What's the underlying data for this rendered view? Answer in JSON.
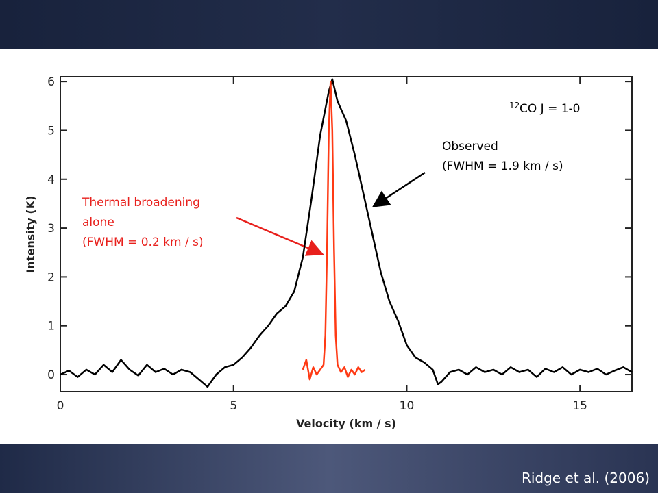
{
  "chart_data": {
    "type": "line",
    "title_sup": "12",
    "title": "CO J = 1-0",
    "xlabel": "Velocity (km / s)",
    "ylabel": "Intensity (K)",
    "annotations": [
      "Observed",
      "(FWHM = 1.9 km / s)",
      "Thermal broadening",
      "alone",
      "(FWHM = 0.2 km / s)"
    ],
    "xlim": [
      0,
      16.5
    ],
    "ylim": [
      -0.35,
      6.1
    ],
    "xticks": [
      0,
      5,
      10,
      15
    ],
    "yticks": [
      0,
      1,
      2,
      3,
      4,
      5,
      6
    ],
    "series": [
      {
        "name": "Observed",
        "color": "#000000",
        "x": [
          0,
          0.25,
          0.5,
          0.75,
          1,
          1.25,
          1.5,
          1.75,
          2,
          2.25,
          2.5,
          2.75,
          3,
          3.25,
          3.5,
          3.75,
          4,
          4.25,
          4.5,
          4.75,
          5,
          5.25,
          5.5,
          5.75,
          6,
          6.25,
          6.5,
          6.75,
          7,
          7.25,
          7.5,
          7.75,
          7.85,
          8,
          8.25,
          8.5,
          8.75,
          9,
          9.25,
          9.5,
          9.75,
          10,
          10.25,
          10.5,
          10.75,
          10.9,
          11,
          11.25,
          11.5,
          11.75,
          12,
          12.25,
          12.5,
          12.75,
          13,
          13.25,
          13.5,
          13.75,
          14,
          14.25,
          14.5,
          14.75,
          15,
          15.25,
          15.5,
          15.75,
          16,
          16.25,
          16.5
        ],
        "values": [
          0,
          0.08,
          -0.05,
          0.1,
          0,
          0.2,
          0.05,
          0.3,
          0.1,
          -0.02,
          0.2,
          0.05,
          0.12,
          0,
          0.1,
          0.05,
          -0.1,
          -0.25,
          0.0,
          0.15,
          0.2,
          0.35,
          0.55,
          0.8,
          1.0,
          1.25,
          1.4,
          1.7,
          2.4,
          3.6,
          4.9,
          5.8,
          6.05,
          5.6,
          5.2,
          4.5,
          3.7,
          2.9,
          2.1,
          1.5,
          1.1,
          0.6,
          0.35,
          0.25,
          0.1,
          -0.2,
          -0.15,
          0.05,
          0.1,
          0.0,
          0.15,
          0.05,
          0.1,
          0.0,
          0.15,
          0.05,
          0.1,
          -0.05,
          0.12,
          0.05,
          0.15,
          0.0,
          0.1,
          0.05,
          0.12,
          0.0,
          0.08,
          0.15,
          0.05
        ]
      },
      {
        "name": "Thermal broadening",
        "color": "#ff3a14",
        "x": [
          7.0,
          7.1,
          7.2,
          7.3,
          7.4,
          7.5,
          7.6,
          7.65,
          7.7,
          7.75,
          7.8,
          7.85,
          7.9,
          7.95,
          8.0,
          8.1,
          8.2,
          8.3,
          8.4,
          8.5,
          8.6,
          8.7,
          8.8
        ],
        "values": [
          0.1,
          0.3,
          -0.1,
          0.15,
          0.0,
          0.1,
          0.2,
          0.8,
          2.6,
          5.0,
          6.0,
          5.0,
          2.6,
          0.8,
          0.2,
          0.05,
          0.15,
          -0.05,
          0.1,
          0.0,
          0.15,
          0.05,
          0.1
        ]
      }
    ]
  },
  "citation": "Ridge et al. (2006)"
}
